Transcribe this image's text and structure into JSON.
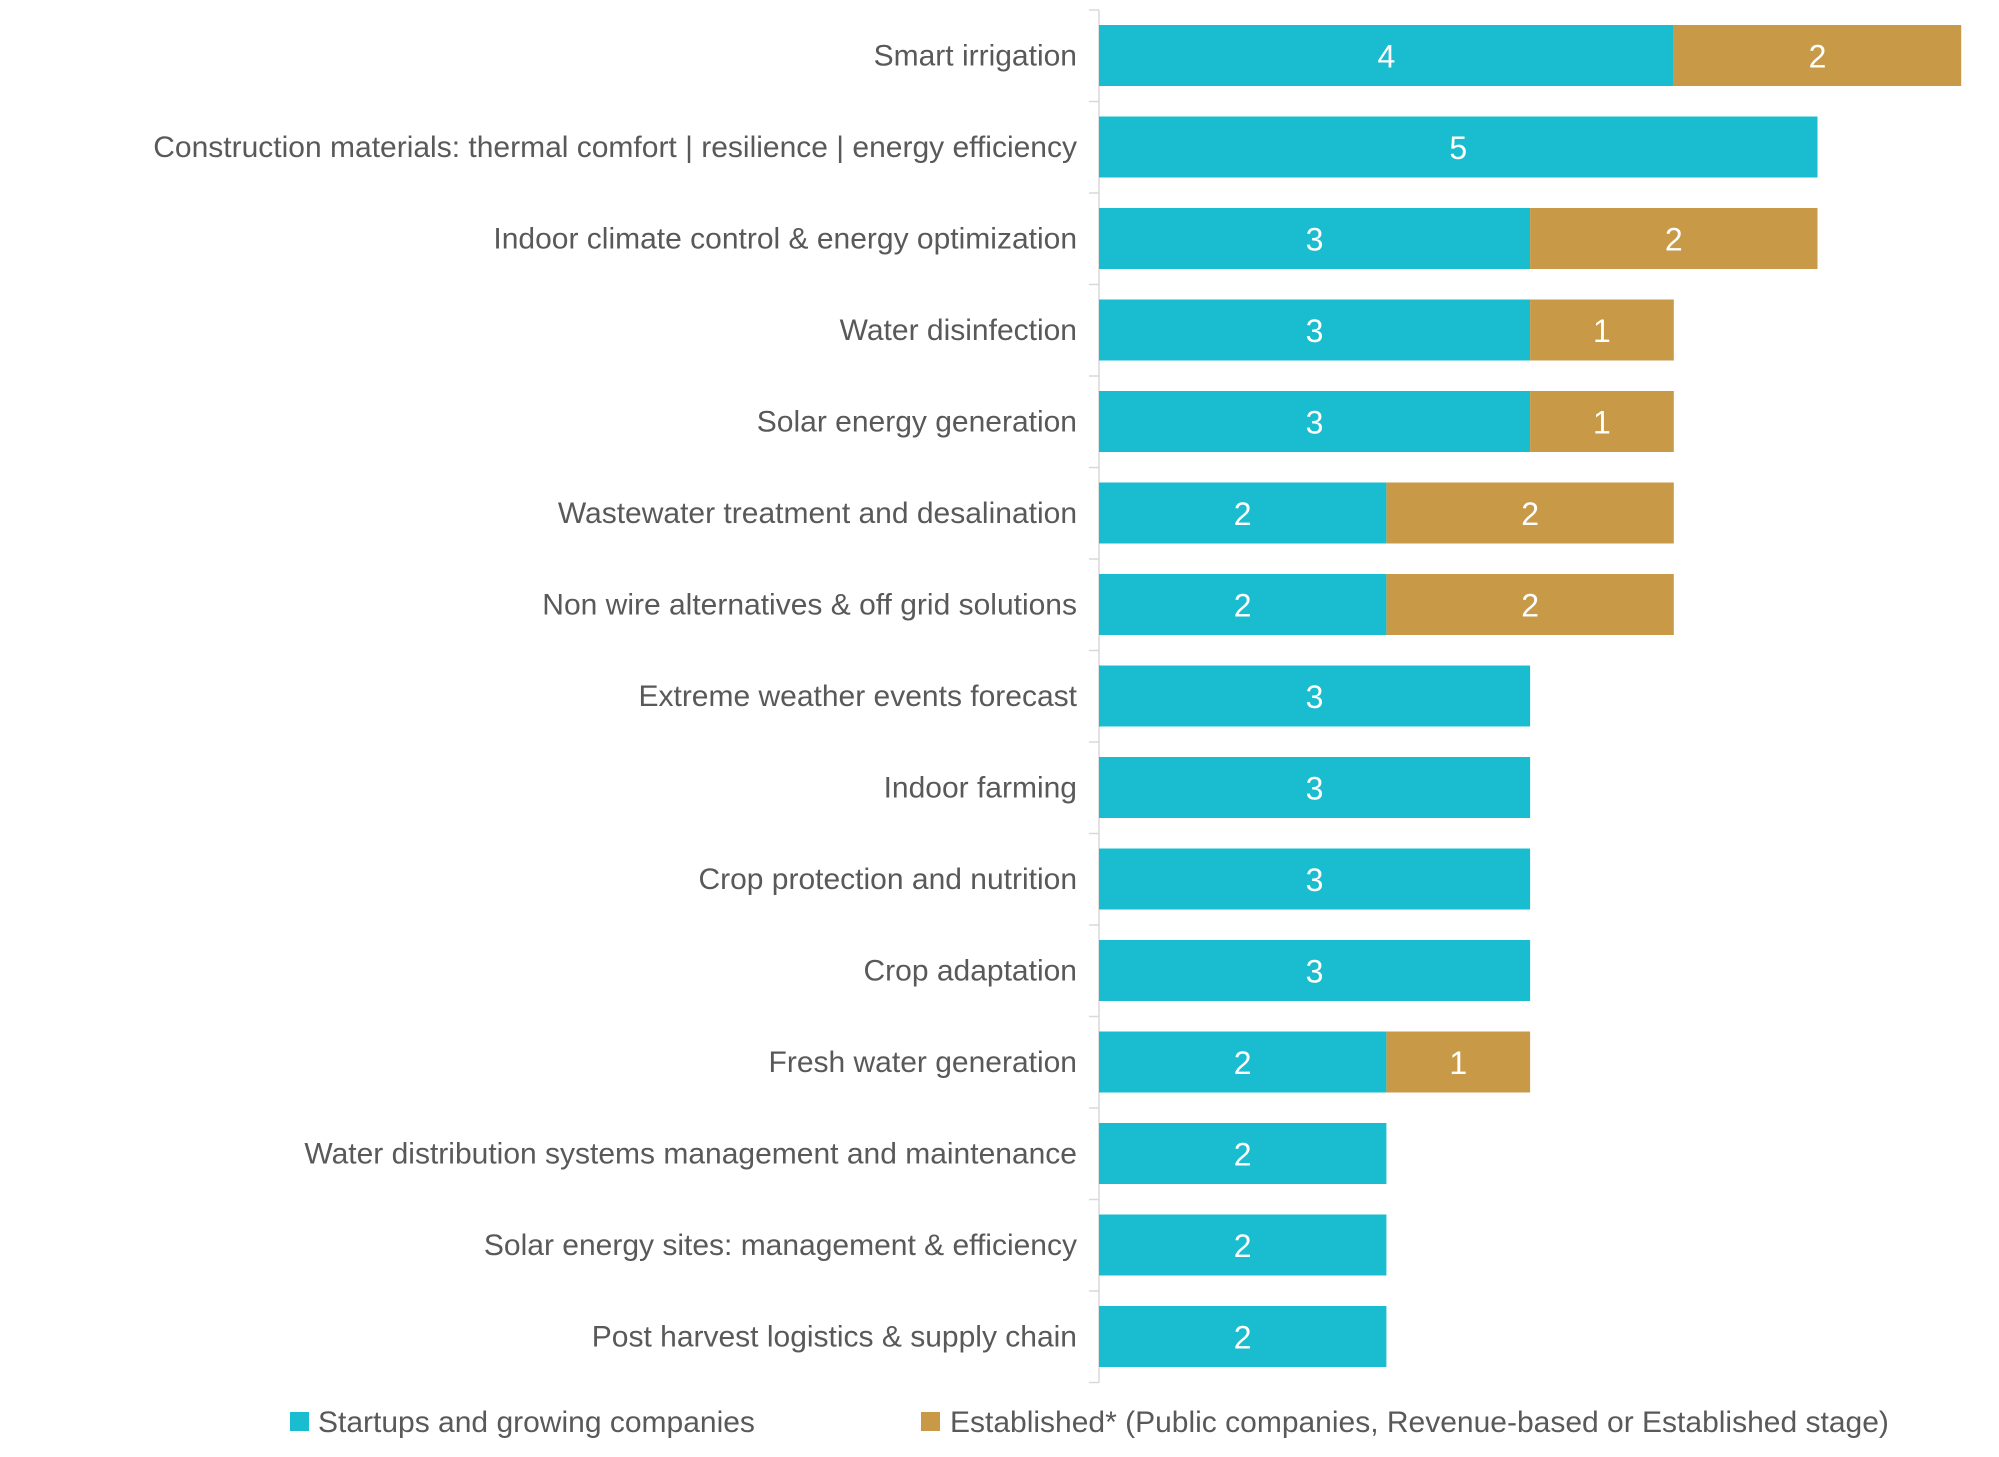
{
  "chart_data": {
    "type": "bar",
    "orientation": "horizontal",
    "stacked": true,
    "title": "",
    "xlabel": "",
    "ylabel": "",
    "xlim": [
      0,
      6
    ],
    "grid": false,
    "x_axis_visible": false,
    "legend_position": "bottom",
    "categories": [
      "Smart irrigation",
      "Construction materials: thermal comfort | resilience | energy efficiency",
      "Indoor climate control & energy optimization",
      "Water disinfection",
      "Solar energy generation",
      "Wastewater treatment and desalination",
      "Non wire alternatives & off grid solutions",
      "Extreme weather events forecast",
      "Indoor farming",
      "Crop protection and nutrition",
      "Crop adaptation",
      "Fresh water generation",
      "Water distribution systems management and maintenance",
      "Solar energy sites: management & efficiency",
      "Post harvest logistics & supply chain"
    ],
    "series": [
      {
        "name": "Startups and growing companies",
        "color": "#19BDCF",
        "values": [
          4,
          5,
          3,
          3,
          3,
          2,
          2,
          3,
          3,
          3,
          3,
          2,
          2,
          2,
          2
        ]
      },
      {
        "name": "Established* (Public companies, Revenue-based or Established stage)",
        "color": "#C89A48",
        "values": [
          2,
          0,
          2,
          1,
          1,
          2,
          2,
          0,
          0,
          0,
          0,
          1,
          0,
          0,
          0
        ]
      }
    ],
    "data_labels": true
  }
}
